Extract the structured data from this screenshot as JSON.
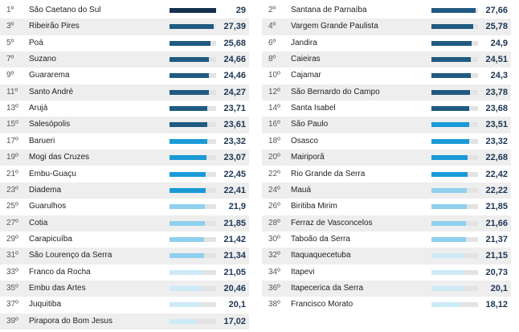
{
  "chart_data": {
    "type": "bar",
    "scale_max": 29,
    "colors": {
      "darkest": "#14304f",
      "dark": "#1f5a82",
      "mid": "#1a9ad6",
      "light": "#8fd0ee",
      "lightest": "#cdeaf7",
      "track": "#e3e3e3"
    },
    "columns": [
      [
        {
          "rank": "1º",
          "name": "São Caetano do Sul",
          "value": 29,
          "label": "29"
        },
        {
          "rank": "3º",
          "name": "Ribeirão Pires",
          "value": 27.39,
          "label": "27,39"
        },
        {
          "rank": "5º",
          "name": "Poá",
          "value": 25.68,
          "label": "25,68"
        },
        {
          "rank": "7º",
          "name": "Suzano",
          "value": 24.66,
          "label": "24,66"
        },
        {
          "rank": "9º",
          "name": "Guararema",
          "value": 24.46,
          "label": "24,46"
        },
        {
          "rank": "11º",
          "name": "Santo André",
          "value": 24.27,
          "label": "24,27"
        },
        {
          "rank": "13º",
          "name": "Arujá",
          "value": 23.71,
          "label": "23,71"
        },
        {
          "rank": "15º",
          "name": "Salesópolis",
          "value": 23.61,
          "label": "23,61"
        },
        {
          "rank": "17º",
          "name": "Barueri",
          "value": 23.32,
          "label": "23,32"
        },
        {
          "rank": "19º",
          "name": "Mogi das Cruzes",
          "value": 23.07,
          "label": "23,07"
        },
        {
          "rank": "21º",
          "name": "Embu-Guaçu",
          "value": 22.45,
          "label": "22,45"
        },
        {
          "rank": "23º",
          "name": "Diadema",
          "value": 22.41,
          "label": "22,41"
        },
        {
          "rank": "25º",
          "name": "Guarulhos",
          "value": 21.9,
          "label": "21,9"
        },
        {
          "rank": "27º",
          "name": "Cotia",
          "value": 21.85,
          "label": "21,85"
        },
        {
          "rank": "29º",
          "name": "Carapicuíba",
          "value": 21.42,
          "label": "21,42"
        },
        {
          "rank": "31º",
          "name": "São Lourenço da Serra",
          "value": 21.34,
          "label": "21,34"
        },
        {
          "rank": "33º",
          "name": "Franco da Rocha",
          "value": 21.05,
          "label": "21,05"
        },
        {
          "rank": "35º",
          "name": "Embu das Artes",
          "value": 20.46,
          "label": "20,46"
        },
        {
          "rank": "37º",
          "name": "Juquitiba",
          "value": 20.1,
          "label": "20,1"
        },
        {
          "rank": "39º",
          "name": "Pirapora do Bom Jesus",
          "value": 17.02,
          "label": "17,02"
        }
      ],
      [
        {
          "rank": "2º",
          "name": "Santana de Parnaíba",
          "value": 27.66,
          "label": "27,66"
        },
        {
          "rank": "4º",
          "name": "Vargem Grande Paulista",
          "value": 25.78,
          "label": "25,78"
        },
        {
          "rank": "6º",
          "name": "Jandira",
          "value": 24.9,
          "label": "24,9"
        },
        {
          "rank": "8º",
          "name": "Caieiras",
          "value": 24.51,
          "label": "24,51"
        },
        {
          "rank": "10º",
          "name": "Cajamar",
          "value": 24.3,
          "label": "24,3"
        },
        {
          "rank": "12º",
          "name": "São Bernardo do Campo",
          "value": 23.78,
          "label": "23,78"
        },
        {
          "rank": "14º",
          "name": "Santa Isabel",
          "value": 23.68,
          "label": "23,68"
        },
        {
          "rank": "16º",
          "name": "São Paulo",
          "value": 23.51,
          "label": "23,51"
        },
        {
          "rank": "18º",
          "name": "Osasco",
          "value": 23.32,
          "label": "23,32"
        },
        {
          "rank": "20º",
          "name": "Mairiporã",
          "value": 22.68,
          "label": "22,68"
        },
        {
          "rank": "22º",
          "name": "Rio Grande da Serra",
          "value": 22.42,
          "label": "22,42"
        },
        {
          "rank": "24º",
          "name": "Mauá",
          "value": 22.22,
          "label": "22,22"
        },
        {
          "rank": "26º",
          "name": "Biritiba Mirim",
          "value": 21.85,
          "label": "21,85"
        },
        {
          "rank": "28º",
          "name": "Ferraz de Vasconcelos",
          "value": 21.66,
          "label": "21,66"
        },
        {
          "rank": "30º",
          "name": "Taboão da Serra",
          "value": 21.37,
          "label": "21,37"
        },
        {
          "rank": "32º",
          "name": "Itaquaquecetuba",
          "value": 21.15,
          "label": "21,15"
        },
        {
          "rank": "34º",
          "name": "Itapevi",
          "value": 20.73,
          "label": "20,73"
        },
        {
          "rank": "36º",
          "name": "Itapecerica da Serra",
          "value": 20.1,
          "label": "20,1"
        },
        {
          "rank": "38º",
          "name": "Francisco Morato",
          "value": 18.12,
          "label": "18,12"
        }
      ]
    ]
  }
}
